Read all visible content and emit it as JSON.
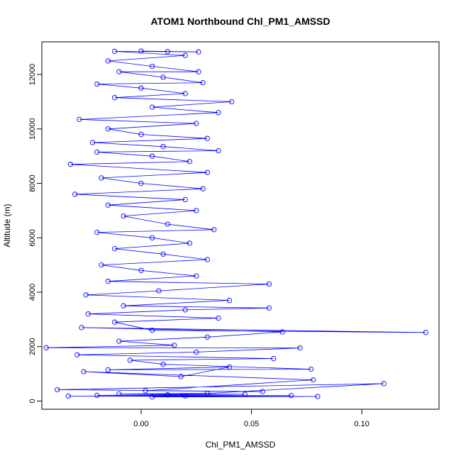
{
  "chart_data": {
    "type": "scatter",
    "title": "ATOM1 Northbound Chl_PM1_AMSSD",
    "xlabel": "Chl_PM1_AMSSD",
    "ylabel": "Altitude (m)",
    "xlim": [
      -0.045,
      0.135
    ],
    "ylim": [
      -300,
      13200
    ],
    "xticks": [
      0.0,
      0.05,
      0.1
    ],
    "xtick_labels": [
      "0.00",
      "0.05",
      "0.10"
    ],
    "yticks": [
      0,
      2000,
      4000,
      6000,
      8000,
      10000,
      12000
    ],
    "ytick_labels": [
      "0",
      "2000",
      "4000",
      "6000",
      "8000",
      "10000",
      "12000"
    ],
    "grid": false,
    "series": [
      {
        "color": "#0000ff",
        "marker": "open-circle",
        "line": true,
        "points": [
          [
            0.005,
            150
          ],
          [
            0.08,
            170
          ],
          [
            -0.033,
            180
          ],
          [
            0.02,
            190
          ],
          [
            0.068,
            200
          ],
          [
            -0.02,
            210
          ],
          [
            0.012,
            230
          ],
          [
            0.047,
            250
          ],
          [
            -0.01,
            260
          ],
          [
            0.03,
            280
          ],
          [
            0.11,
            640
          ],
          [
            -0.038,
            420
          ],
          [
            0.055,
            350
          ],
          [
            0.002,
            380
          ],
          [
            0.078,
            780
          ],
          [
            -0.026,
            1080
          ],
          [
            0.018,
            900
          ],
          [
            0.04,
            1250
          ],
          [
            -0.015,
            1150
          ],
          [
            0.077,
            1170
          ],
          [
            0.01,
            1350
          ],
          [
            -0.005,
            1500
          ],
          [
            0.06,
            1560
          ],
          [
            -0.029,
            1700
          ],
          [
            0.025,
            1800
          ],
          [
            0.072,
            1950
          ],
          [
            -0.043,
            1960
          ],
          [
            0.015,
            2050
          ],
          [
            -0.01,
            2200
          ],
          [
            0.03,
            2350
          ],
          [
            0.064,
            2540
          ],
          [
            -0.027,
            2700
          ],
          [
            0.129,
            2520
          ],
          [
            0.005,
            2600
          ],
          [
            -0.012,
            2900
          ],
          [
            0.035,
            3050
          ],
          [
            -0.024,
            3200
          ],
          [
            0.02,
            3350
          ],
          [
            0.058,
            3420
          ],
          [
            -0.008,
            3500
          ],
          [
            0.04,
            3700
          ],
          [
            -0.025,
            3900
          ],
          [
            0.008,
            4050
          ],
          [
            0.058,
            4300
          ],
          [
            -0.015,
            4400
          ],
          [
            0.025,
            4600
          ],
          [
            0.0,
            4800
          ],
          [
            -0.018,
            5000
          ],
          [
            0.03,
            5200
          ],
          [
            0.01,
            5400
          ],
          [
            -0.012,
            5600
          ],
          [
            0.022,
            5800
          ],
          [
            0.005,
            6000
          ],
          [
            -0.02,
            6200
          ],
          [
            0.033,
            6300
          ],
          [
            0.012,
            6500
          ],
          [
            -0.008,
            6800
          ],
          [
            0.025,
            7000
          ],
          [
            -0.015,
            7200
          ],
          [
            0.02,
            7400
          ],
          [
            -0.03,
            7600
          ],
          [
            0.028,
            7800
          ],
          [
            0.0,
            8000
          ],
          [
            -0.018,
            8200
          ],
          [
            0.03,
            8400
          ],
          [
            -0.032,
            8700
          ],
          [
            0.022,
            8800
          ],
          [
            0.005,
            9000
          ],
          [
            -0.02,
            9150
          ],
          [
            0.035,
            9200
          ],
          [
            0.01,
            9350
          ],
          [
            -0.022,
            9500
          ],
          [
            0.03,
            9650
          ],
          [
            0.0,
            9800
          ],
          [
            -0.015,
            10000
          ],
          [
            0.025,
            10200
          ],
          [
            -0.028,
            10350
          ],
          [
            0.035,
            10600
          ],
          [
            0.005,
            10800
          ],
          [
            0.041,
            11000
          ],
          [
            -0.012,
            11150
          ],
          [
            0.02,
            11300
          ],
          [
            0.0,
            11500
          ],
          [
            -0.02,
            11650
          ],
          [
            0.028,
            11700
          ],
          [
            0.01,
            11900
          ],
          [
            -0.01,
            12100
          ],
          [
            0.026,
            12100
          ],
          [
            0.005,
            12300
          ],
          [
            -0.015,
            12500
          ],
          [
            0.02,
            12700
          ],
          [
            -0.012,
            12850
          ],
          [
            0.026,
            12830
          ],
          [
            0.0,
            12860
          ],
          [
            0.012,
            12840
          ]
        ]
      }
    ]
  }
}
